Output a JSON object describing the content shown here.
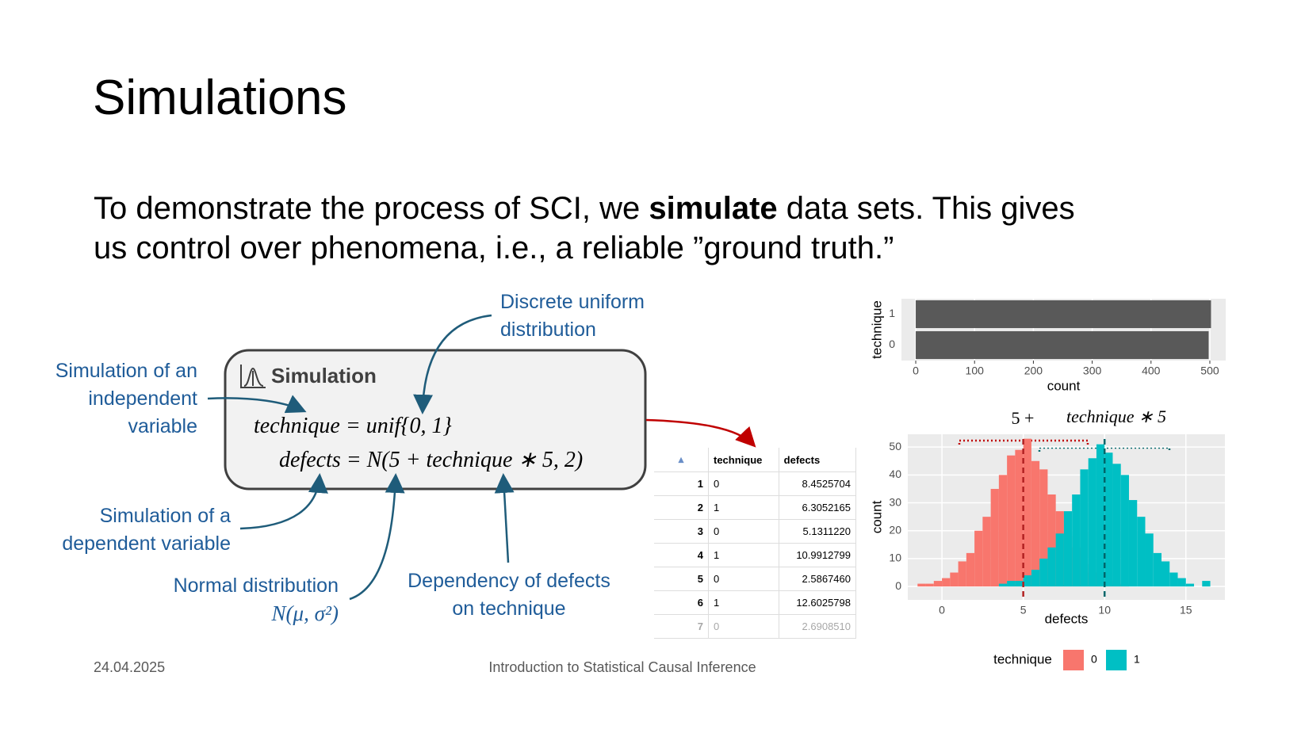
{
  "header": {
    "title": "Simulations"
  },
  "intro": {
    "before": "To demonstrate the process of SCI, we ",
    "bold": "simulate",
    "after": " data sets. This gives us control over phenomena, i.e., a reliable ”ground truth.”"
  },
  "diagram": {
    "box_title": "Simulation",
    "formula_1": "technique = unif{0, 1}",
    "formula_2": "defects = N(5 + technique ∗ 5, 2)",
    "note_uniform": "Discrete uniform distribution",
    "note_independent": "Simulation of an independent variable",
    "note_dependent": "Simulation of a dependent variable",
    "note_normal": "Normal distribution",
    "note_normal_formula": "N(μ, σ²)",
    "note_dependency": "Dependency of defects on technique"
  },
  "table": {
    "columns": [
      "technique",
      "defects"
    ],
    "rows": [
      [
        "1",
        "0",
        "8.4525704"
      ],
      [
        "2",
        "1",
        "6.3052165"
      ],
      [
        "3",
        "0",
        "5.1311220"
      ],
      [
        "4",
        "1",
        "10.9912799"
      ],
      [
        "5",
        "0",
        "2.5867460"
      ],
      [
        "6",
        "1",
        "12.6025798"
      ],
      [
        "7",
        "0",
        "2.6908510"
      ]
    ]
  },
  "chart_data": [
    {
      "type": "hbar",
      "categories": [
        "0",
        "1"
      ],
      "values": [
        498,
        502
      ],
      "color": "#595959",
      "xlim": [
        -24.3,
        527
      ],
      "xticks": [
        0,
        100,
        200,
        300,
        400,
        500
      ],
      "xlabel": "count",
      "ylabel": "technique",
      "grid": true
    },
    {
      "type": "histogram",
      "bins": [
        -1.5,
        -1,
        -0.5,
        0,
        0.5,
        1,
        1.5,
        2,
        2.5,
        3,
        3.5,
        4,
        4.5,
        5,
        5.5,
        6,
        6.5,
        7,
        7.5,
        8,
        8.5,
        9,
        9.5,
        10,
        10.5,
        11,
        11.5,
        12,
        12.5,
        13,
        13.5,
        14,
        14.5,
        15,
        15.5,
        16,
        16.5
      ],
      "series": [
        {
          "name": "0",
          "color": "#F8766D",
          "values": [
            1,
            1,
            2,
            3,
            5,
            9,
            12,
            20,
            25,
            35,
            40,
            47,
            49,
            53,
            45,
            42,
            33,
            27,
            18,
            14,
            8,
            5,
            3,
            2,
            1,
            1,
            0,
            0,
            0,
            0,
            0,
            0,
            0,
            0,
            0,
            0
          ]
        },
        {
          "name": "1",
          "color": "#00BFC4",
          "values": [
            0,
            0,
            0,
            0,
            0,
            0,
            0,
            0,
            0,
            0,
            1,
            2,
            2,
            4,
            6,
            10,
            14,
            19,
            27,
            33,
            42,
            46,
            51,
            48,
            44,
            40,
            31,
            25,
            19,
            12,
            9,
            5,
            3,
            1,
            0,
            2
          ]
        }
      ],
      "vlines": [
        5,
        10
      ],
      "vline_colors": [
        "#B22222",
        "#00666A"
      ],
      "xlim": [
        -2.1,
        17.4
      ],
      "xticks": [
        0,
        5,
        10,
        15
      ],
      "ylim": [
        -4.8,
        54.6
      ],
      "yticks": [
        0,
        10,
        20,
        30,
        40,
        50
      ],
      "xlabel": "defects",
      "ylabel": "count",
      "legend_title": "technique",
      "annotations": [
        "5 +",
        "technique ∗ 5"
      ],
      "grid": true
    }
  ],
  "footer": {
    "date": "24.04.2025",
    "course": "Introduction to Statistical Causal Inference"
  }
}
